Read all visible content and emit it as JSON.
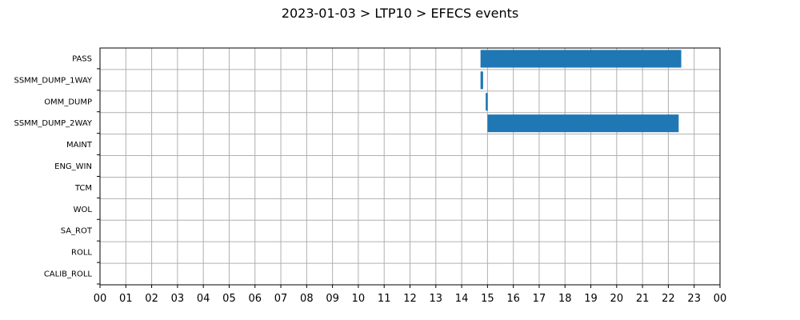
{
  "chart_data": {
    "type": "gantt",
    "title": "2023-01-03 > LTP10 > EFECS events",
    "categories": [
      "PASS",
      "SSMM_DUMP_1WAY",
      "OMM_DUMP",
      "SSMM_DUMP_2WAY",
      "MAINT",
      "ENG_WIN",
      "TCM",
      "WOL",
      "SA_ROT",
      "ROLL",
      "CALIB_ROLL"
    ],
    "x_unit": "hour of day",
    "xlim": [
      0,
      24
    ],
    "x_ticks": [
      "00",
      "01",
      "02",
      "03",
      "04",
      "05",
      "06",
      "07",
      "08",
      "09",
      "10",
      "11",
      "12",
      "13",
      "14",
      "15",
      "16",
      "17",
      "18",
      "19",
      "20",
      "21",
      "22",
      "23",
      "00"
    ],
    "bar_color": "#1f77b4",
    "grid": true,
    "series": [
      {
        "category": "PASS",
        "start": 14.73,
        "end": 22.5
      },
      {
        "category": "SSMM_DUMP_1WAY",
        "start": 14.73,
        "end": 14.83
      },
      {
        "category": "OMM_DUMP",
        "start": 14.93,
        "end": 15.0
      },
      {
        "category": "SSMM_DUMP_2WAY",
        "start": 15.0,
        "end": 22.4
      }
    ]
  }
}
